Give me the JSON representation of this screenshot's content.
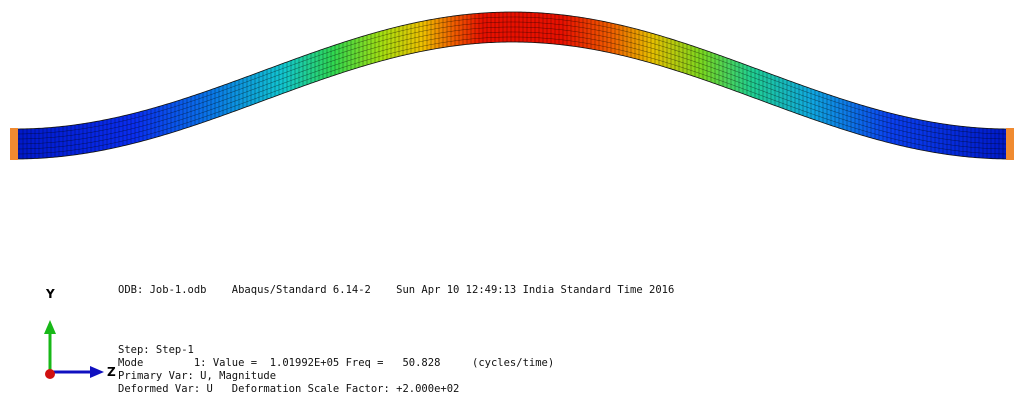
{
  "viewport": {
    "triad": {
      "y_label": "Y",
      "z_label": "Z"
    },
    "info": {
      "odb": "ODB: Job-1.odb    Abaqus/Standard 6.14-2    Sun Apr 10 12:49:13 India Standard Time 2016",
      "step": "Step: Step-1",
      "mode": "Mode        1: Value =  1.01992E+05 Freq =   50.828     (cycles/time)",
      "primary_var": "Primary Var: U, Magnitude",
      "deformed_var": "Deformed Var: U   Deformation Scale Factor: +2.000e+02"
    }
  }
}
